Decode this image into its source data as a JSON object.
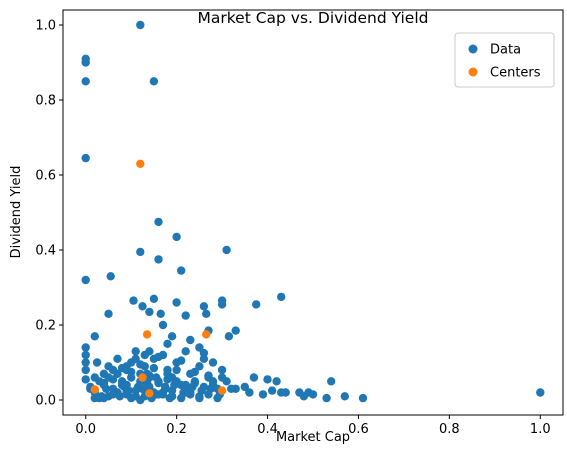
{
  "chart_data": {
    "type": "scatter",
    "title": "Market Cap vs. Dividend Yield",
    "xlabel": "Market Cap",
    "ylabel": "Dividend Yield",
    "xlim": [
      -0.05,
      1.05
    ],
    "ylim": [
      -0.04,
      1.04
    ],
    "xticks": [
      "0.0",
      "0.2",
      "0.4",
      "0.6",
      "0.8",
      "1.0"
    ],
    "yticks": [
      "0.0",
      "0.2",
      "0.4",
      "0.6",
      "0.8",
      "1.0"
    ],
    "grid": false,
    "legend": "top-right",
    "series": [
      {
        "name": "Data",
        "color": "#1f77b4",
        "x": [
          0.0,
          0.0,
          0.0,
          0.0,
          0.0,
          0.12,
          0.15,
          0.16,
          0.2,
          0.12,
          0.16,
          0.21,
          0.31,
          0.43,
          0.0,
          0.055,
          0.105,
          0.15,
          0.125,
          0.2,
          0.05,
          0.14,
          0.165,
          0.22,
          0.26,
          0.3,
          0.3,
          0.315,
          0.375,
          0.33,
          0.265,
          0.27,
          0.02,
          0.0,
          0.0,
          0.0,
          0.025,
          0.04,
          0.06,
          0.09,
          0.11,
          0.14,
          0.18,
          0.19,
          0.23,
          0.25,
          0.32,
          0.35,
          0.37,
          0.4,
          0.42,
          0.43,
          0.47,
          0.5,
          0.54,
          0.57,
          0.61,
          1.0,
          0.0,
          0.01,
          0.02,
          0.03,
          0.04,
          0.05,
          0.06,
          0.07,
          0.08,
          0.09,
          0.1,
          0.11,
          0.12,
          0.13,
          0.14,
          0.15,
          0.16,
          0.17,
          0.18,
          0.19,
          0.2,
          0.21,
          0.22,
          0.23,
          0.24,
          0.25,
          0.26,
          0.27,
          0.28,
          0.29,
          0.3,
          0.31,
          0.33,
          0.36,
          0.39,
          0.41,
          0.44,
          0.48,
          0.49,
          0.53,
          0.02,
          0.035,
          0.045,
          0.065,
          0.075,
          0.085,
          0.095,
          0.115,
          0.135,
          0.155,
          0.175,
          0.195,
          0.215,
          0.235,
          0.255,
          0.275,
          0.295,
          0.01,
          0.03,
          0.05,
          0.07,
          0.09,
          0.11,
          0.13,
          0.15,
          0.17,
          0.19,
          0.21,
          0.23,
          0.25,
          0.27,
          0.29,
          0.02,
          0.04,
          0.06,
          0.08,
          0.1,
          0.12,
          0.14,
          0.16,
          0.18,
          0.2,
          0.22,
          0.24,
          0.26,
          0.28,
          0.05,
          0.08,
          0.1,
          0.12,
          0.15,
          0.18,
          0.2,
          0.24,
          0.27,
          0.3,
          0.06,
          0.09,
          0.11,
          0.14,
          0.17,
          0.19,
          0.23,
          0.07,
          0.13,
          0.16,
          0.21,
          0.26,
          0.28,
          0.085,
          0.125,
          0.175,
          0.225,
          0.04,
          0.1,
          0.145,
          0.185,
          0.25,
          0.17,
          0.09,
          0.12,
          0.135,
          0.155,
          0.14,
          0.13,
          0.135,
          0.16,
          0.19,
          0.22
        ],
        "y": [
          0.91,
          0.9,
          0.85,
          0.645,
          0.32,
          1.0,
          0.85,
          0.475,
          0.435,
          0.395,
          0.375,
          0.345,
          0.4,
          0.275,
          0.14,
          0.33,
          0.265,
          0.27,
          0.25,
          0.26,
          0.23,
          0.235,
          0.23,
          0.225,
          0.25,
          0.265,
          0.255,
          0.17,
          0.255,
          0.185,
          0.23,
          0.185,
          0.17,
          0.12,
          0.1,
          0.08,
          0.1,
          0.07,
          0.08,
          0.09,
          0.11,
          0.13,
          0.15,
          0.17,
          0.16,
          0.14,
          0.03,
          0.035,
          0.06,
          0.055,
          0.05,
          0.02,
          0.02,
          0.015,
          0.05,
          0.01,
          0.005,
          0.02,
          0.055,
          0.035,
          0.02,
          0.05,
          0.04,
          0.06,
          0.03,
          0.07,
          0.05,
          0.08,
          0.1,
          0.13,
          0.07,
          0.09,
          0.06,
          0.11,
          0.05,
          0.12,
          0.08,
          0.06,
          0.1,
          0.04,
          0.13,
          0.07,
          0.05,
          0.09,
          0.11,
          0.06,
          0.04,
          0.03,
          0.08,
          0.05,
          0.03,
          0.02,
          0.015,
          0.025,
          0.02,
          0.01,
          0.02,
          0.005,
          0.005,
          0.01,
          0.03,
          0.02,
          0.01,
          0.04,
          0.025,
          0.035,
          0.045,
          0.015,
          0.03,
          0.04,
          0.02,
          0.035,
          0.025,
          0.03,
          0.015,
          0.03,
          0.005,
          0.01,
          0.02,
          0.015,
          0.025,
          0.01,
          0.02,
          0.015,
          0.01,
          0.005,
          0.02,
          0.01,
          0.015,
          0.005,
          0.06,
          0.045,
          0.055,
          0.04,
          0.06,
          0.05,
          0.065,
          0.045,
          0.055,
          0.05,
          0.04,
          0.045,
          0.035,
          0.05,
          0.09,
          0.085,
          0.075,
          0.095,
          0.085,
          0.07,
          0.08,
          0.075,
          0.065,
          0.06,
          0.015,
          0.02,
          0.01,
          0.015,
          0.02,
          0.01,
          0.015,
          0.11,
          0.12,
          0.115,
          0.105,
          0.125,
          0.1,
          0.035,
          0.03,
          0.035,
          0.03,
          0.005,
          0.005,
          0.005,
          0.005,
          0.005,
          0.2,
          0.04,
          0.0,
          0.045,
          0.06,
          0.035,
          0.025,
          0.07,
          0.015,
          0.025,
          0.02
        ]
      },
      {
        "name": "Centers",
        "color": "#ff7f0e",
        "x": [
          0.12,
          0.135,
          0.265,
          0.02,
          0.125,
          0.14,
          0.3
        ],
        "y": [
          0.63,
          0.175,
          0.175,
          0.028,
          0.06,
          0.018,
          0.025
        ]
      }
    ]
  }
}
